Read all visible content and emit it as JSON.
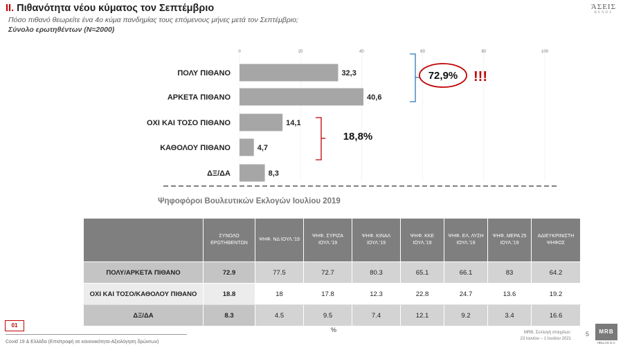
{
  "header": {
    "title_num": "II.",
    "title_text": "Πιθανότητα νέου κύματος τον Σεπτέμβριο",
    "subtitle": "Πόσο πιθανό θεωρείτε ένα 4ο κύμα πανδημίας τους επόμενους μήνες μετά τον Σεπτέμβριο;",
    "base": "Σύνολο ερωτηθέντων (N=2000)",
    "brand_top": "ΆΣΕΙΣ",
    "brand_bottom": "RENDS"
  },
  "chart_data": {
    "type": "bar",
    "orientation": "horizontal",
    "categories": [
      "ΠΟΛΥ ΠΙΘΑΝΟ",
      "ΑΡΚΕΤΑ ΠΙΘΑΝΟ",
      "ΟΧΙ ΚΑΙ ΤΟΣΟ ΠΙΘΑΝΟ",
      "ΚΑΘΟΛΟΥ ΠΙΘΑΝΟ",
      "ΔΞ/ΔΑ"
    ],
    "values": [
      32.3,
      40.6,
      14.1,
      4.7,
      8.3
    ],
    "value_labels": [
      "32,3",
      "40,6",
      "14,1",
      "4,7",
      "8,3"
    ],
    "xlim": [
      0,
      100
    ],
    "xticks": [
      0,
      20,
      40,
      60,
      80,
      100
    ],
    "bar_color": "#a6a6a6",
    "annotations": [
      {
        "text": "72,9%",
        "groups": [
          0,
          1
        ],
        "bracket_color": "#2e75b6",
        "circle_color": "#c00000"
      },
      {
        "text": "!!!",
        "color": "#c00000"
      },
      {
        "text": "18,8%",
        "groups": [
          2,
          3
        ],
        "bracket_color": "#c00000"
      }
    ]
  },
  "table": {
    "title": "Ψηφοφόροι Βουλευτικών Εκλογών Ιουλίου 2019",
    "headers": [
      "ΣΥΝΟΛΟ ΕΡΩΤΗΘΕΝΤΩΝ",
      "ΨΗΦ. ΝΔ ΙΟΥΛ.'19",
      "ΨΗΦ. ΣΥΡΙΖΑ ΙΟΥΛ.'19",
      "ΨΗΦ. ΚΙΝΑΛ ΙΟΥΛ.'19",
      "ΨΗΦ. ΚΚΕ ΙΟΥΛ.'19",
      "ΨΗΦ. ΕΛ. ΛΥΣΗ ΙΟΥΛ.'19",
      "ΨΗΦ. ΜΕΡΑ 25 ΙΟΥΛ.'19",
      "ΑΔΙΕΥΚΡΙΝΙΣΤΗ ΨΗΦΟΣ"
    ],
    "rows": [
      {
        "label": "ΠΟΛΥ/ΑΡΚΕΤΑ ΠΙΘΑΝΟ",
        "values": [
          "72.9",
          "77.5",
          "72.7",
          "80.3",
          "65.1",
          "66.1",
          "83",
          "64.2"
        ]
      },
      {
        "label": "ΟΧΙ ΚΑΙ ΤΟΣΟ/ΚΑΘΟΛΟΥ ΠΙΘΑΝΟ",
        "values": [
          "18.8",
          "18",
          "17.8",
          "12.3",
          "22.8",
          "24.7",
          "13.6",
          "19.2"
        ]
      },
      {
        "label": "ΔΞ/ΔΑ",
        "values": [
          "8.3",
          "4.5",
          "9.5",
          "7.4",
          "12.1",
          "9.2",
          "3.4",
          "16.6"
        ]
      }
    ],
    "unit": "%"
  },
  "footer": {
    "slide_id": "01",
    "text": "Covid 19 & Ελλάδα (Επιστροφή σε κανονικότητα-Αξιολόγηση δρώντων)",
    "source_line1": "MRB, Συλλογή στοιχείων:",
    "source_line2": "23 Ιουνίου – 1 Ιουλίου 2021",
    "page_number": "5",
    "logo_top": "MRB",
    "logo_bottom": "HELLAS S.A."
  }
}
